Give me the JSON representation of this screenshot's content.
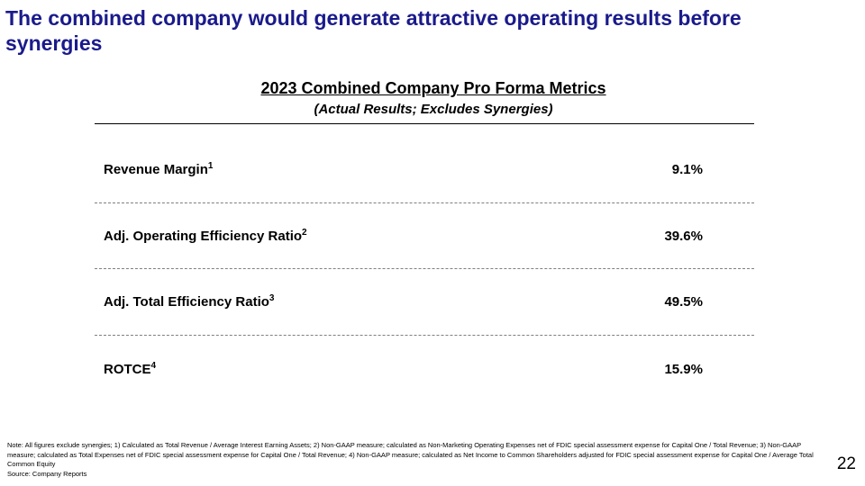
{
  "slide": {
    "title": "The combined company would generate attractive operating results before synergies",
    "heading": "2023 Combined Company Pro Forma Metrics",
    "subheading": "(Actual Results; Excludes Synergies)",
    "metrics": [
      {
        "label": "Revenue Margin",
        "footnote": "1",
        "value": "9.1%"
      },
      {
        "label": "Adj. Operating Efficiency Ratio",
        "footnote": "2",
        "value": "39.6%"
      },
      {
        "label": "Adj. Total Efficiency Ratio",
        "footnote": "3",
        "value": "49.5%"
      },
      {
        "label": "ROTCE",
        "footnote": "4",
        "value": "15.9%"
      }
    ],
    "note": "Note: All figures exclude synergies; 1) Calculated as Total Revenue / Average Interest Earning Assets; 2) Non-GAAP measure; calculated as Non-Marketing Operating Expenses net of FDIC special assessment expense for Capital One / Total Revenue; 3) Non-GAAP measure; calculated as Total Expenses net of FDIC special assessment expense for Capital One / Total Revenue; 4) Non-GAAP measure; calculated as Net Income to Common Shareholders adjusted for FDIC special assessment expense for Capital One / Average Total Common Equity",
    "source": "Source: Company Reports",
    "page_number": "22"
  }
}
